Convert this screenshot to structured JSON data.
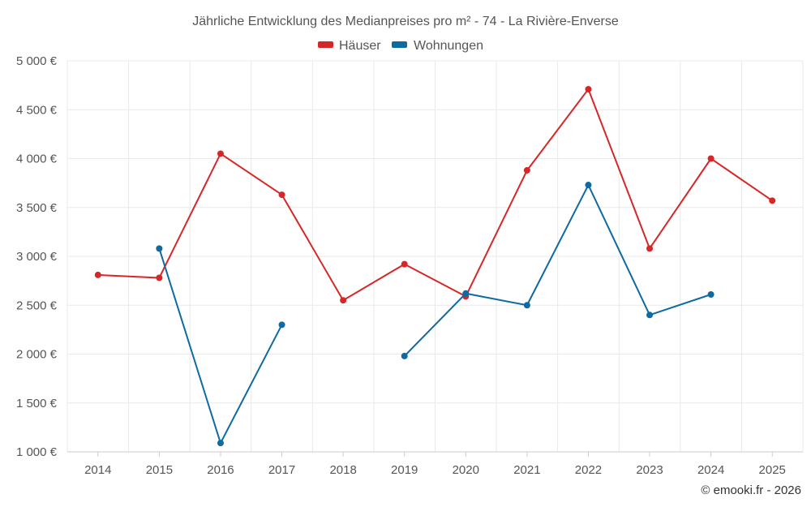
{
  "chart_data": {
    "type": "line",
    "title": "Jährliche Entwicklung des Medianpreises pro m² - 74 - La Rivière-Enverse",
    "categories": [
      "2014",
      "2015",
      "2016",
      "2017",
      "2018",
      "2019",
      "2020",
      "2021",
      "2022",
      "2023",
      "2024",
      "2025"
    ],
    "ylim": [
      1000,
      5000
    ],
    "yticks": [
      1000,
      1500,
      2000,
      2500,
      3000,
      3500,
      4000,
      4500,
      5000
    ],
    "ytick_labels": [
      "1 000 €",
      "1 500 €",
      "2 000 €",
      "2 500 €",
      "3 000 €",
      "3 500 €",
      "4 000 €",
      "4 500 €",
      "5 000 €"
    ],
    "grid": true,
    "legend_position": "top-center",
    "series": [
      {
        "name": "Häuser",
        "color": "#d62728",
        "values": [
          2810,
          2780,
          4050,
          3630,
          2550,
          2920,
          2590,
          3880,
          4710,
          3080,
          4000,
          3570
        ]
      },
      {
        "name": "Wohnungen",
        "color": "#0e6aa0",
        "values": [
          null,
          3080,
          1090,
          2300,
          null,
          1980,
          2620,
          2500,
          3730,
          2400,
          2610,
          null
        ]
      }
    ]
  },
  "credit": "© emooki.fr - 2026"
}
